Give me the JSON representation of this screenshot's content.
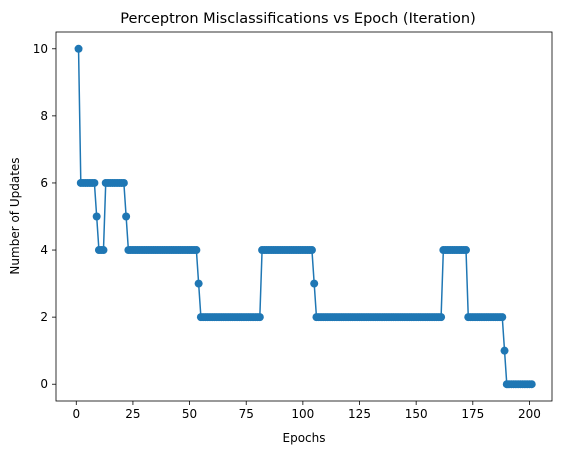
{
  "chart_data": {
    "type": "line",
    "title": "Perceptron Misclassifications vs Epoch (Iteration)",
    "xlabel": "Epochs",
    "ylabel": "Number of Updates",
    "xlim": [
      -8.95,
      209.95
    ],
    "ylim": [
      -0.5,
      10.5
    ],
    "xticks": [
      0,
      25,
      50,
      75,
      100,
      125,
      150,
      175,
      200
    ],
    "yticks": [
      0,
      2,
      4,
      6,
      8,
      10
    ],
    "grid": false,
    "series": [
      {
        "color": "#1f77b4",
        "marker": "circle",
        "runs": [
          {
            "from": 1,
            "to": 1,
            "value": 10
          },
          {
            "from": 2,
            "to": 8,
            "value": 6
          },
          {
            "from": 9,
            "to": 9,
            "value": 5
          },
          {
            "from": 10,
            "to": 12,
            "value": 4
          },
          {
            "from": 13,
            "to": 21,
            "value": 6
          },
          {
            "from": 22,
            "to": 22,
            "value": 5
          },
          {
            "from": 23,
            "to": 53,
            "value": 4
          },
          {
            "from": 54,
            "to": 54,
            "value": 3
          },
          {
            "from": 55,
            "to": 81,
            "value": 2
          },
          {
            "from": 82,
            "to": 104,
            "value": 4
          },
          {
            "from": 105,
            "to": 105,
            "value": 3
          },
          {
            "from": 106,
            "to": 161,
            "value": 2
          },
          {
            "from": 162,
            "to": 172,
            "value": 4
          },
          {
            "from": 173,
            "to": 188,
            "value": 2
          },
          {
            "from": 189,
            "to": 189,
            "value": 1
          },
          {
            "from": 190,
            "to": 201,
            "value": 0
          }
        ]
      }
    ]
  }
}
